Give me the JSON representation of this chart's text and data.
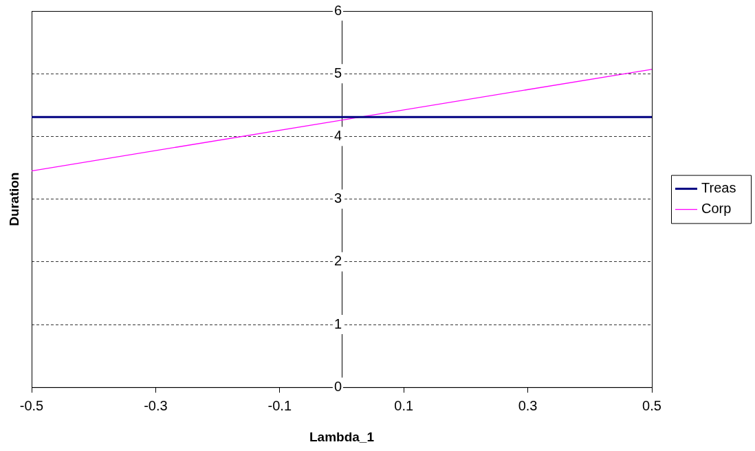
{
  "chart_data": {
    "type": "line",
    "xlabel": "Lambda_1",
    "ylabel": "Duration",
    "x": [
      -0.5,
      0.5
    ],
    "series": [
      {
        "name": "Treas",
        "color": "#000080",
        "values": [
          4.31,
          4.31
        ]
      },
      {
        "name": "Corp",
        "color": "#ff00ff",
        "values": [
          3.45,
          5.07
        ]
      }
    ],
    "xlim": [
      -0.5,
      0.5
    ],
    "xticks": [
      -0.5,
      -0.3,
      -0.1,
      0.1,
      0.3,
      0.5
    ],
    "ylim": [
      0,
      6
    ],
    "yticks": [
      0,
      1,
      2,
      3,
      4,
      5,
      6
    ],
    "grid": "y",
    "legend": "right",
    "marker": "none",
    "line_style": "solid"
  }
}
